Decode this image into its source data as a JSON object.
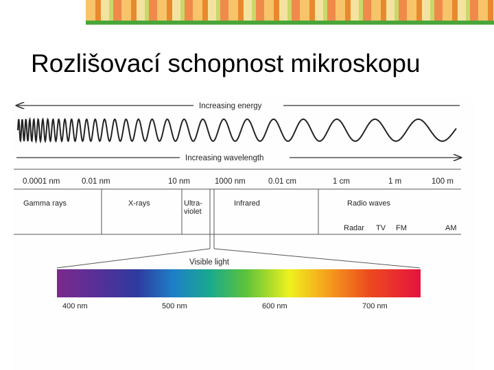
{
  "slide": {
    "title": "Rozlišovací schopnost mikroskopu"
  },
  "diagram": {
    "energy_label": "Increasing energy",
    "wavelength_label": "Increasing wavelength",
    "scale": [
      "0.0001 nm",
      "0.01 nm",
      "10 nm",
      "1000 nm",
      "0.01 cm",
      "1 cm",
      "1 m",
      "100 m"
    ],
    "bands": {
      "gamma": "Gamma rays",
      "xrays": "X-rays",
      "uv_line1": "Ultra-",
      "uv_line2": "violet",
      "infrared": "Infrared",
      "radio": "Radio waves"
    },
    "radio_sub": [
      "Radar",
      "TV",
      "FM",
      "AM"
    ],
    "visible_label": "Visible light",
    "visible_scale": [
      "400 nm",
      "500 nm",
      "600 nm",
      "700 nm"
    ]
  },
  "colors": {
    "banner_green": "#4aa63a",
    "line": "#333333"
  }
}
